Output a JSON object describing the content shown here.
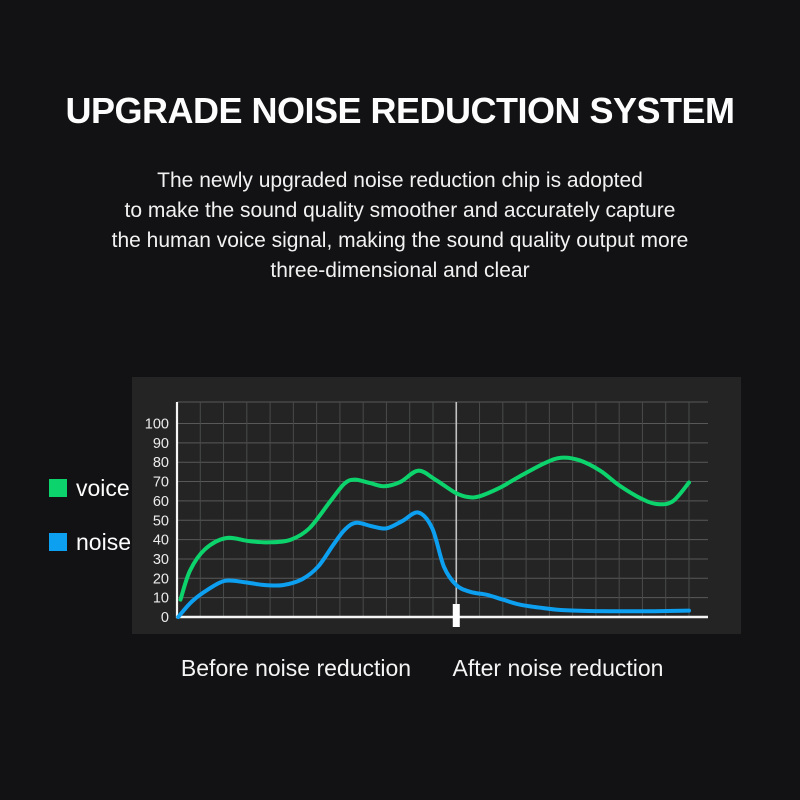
{
  "page": {
    "background": "#121214",
    "panel_background": "#242424"
  },
  "header": {
    "title": "UPGRADE NOISE REDUCTION SYSTEM",
    "description_lines": [
      "The newly upgraded noise reduction chip is adopted",
      "to make the sound quality smoother and accurately capture",
      "the human voice signal, making the sound quality output more",
      "three-dimensional and clear"
    ]
  },
  "legend": {
    "items": [
      {
        "label": "voice",
        "color": "#0cd36c"
      },
      {
        "label": "noise",
        "color": "#0d9ff0"
      }
    ]
  },
  "chart_data": {
    "type": "line",
    "title": "",
    "xlabel": "",
    "ylabel": "",
    "grid": true,
    "legend_position": "left-outside",
    "y_axis": {
      "ticks": [
        0,
        10,
        20,
        30,
        40,
        50,
        60,
        70,
        80,
        90,
        100
      ],
      "lim": [
        0,
        111
      ]
    },
    "x_axis": {
      "units": 22,
      "divider_unit": 12,
      "section_labels": [
        "Before noise reduction",
        "After noise reduction"
      ]
    },
    "colors": {
      "grid_h": "#585858",
      "grid_v": "#494a4a",
      "divider_line": "#c2c2c2",
      "axis": "#f5f5f5",
      "tick_label": "#ececec",
      "divider_tick": "#ffffff"
    },
    "series": [
      {
        "name": "voice",
        "color": "#0cd36c",
        "points": [
          [
            0.15,
            9
          ],
          [
            0.56,
            24
          ],
          [
            1.2,
            35
          ],
          [
            2.1,
            40.8
          ],
          [
            3.1,
            39.2
          ],
          [
            4.0,
            38.6
          ],
          [
            4.9,
            40
          ],
          [
            5.7,
            46
          ],
          [
            6.6,
            60
          ],
          [
            7.2,
            69
          ],
          [
            7.65,
            71
          ],
          [
            8.3,
            69.2
          ],
          [
            8.9,
            67.6
          ],
          [
            9.6,
            69.8
          ],
          [
            10.36,
            75.6
          ],
          [
            11.1,
            71
          ],
          [
            11.95,
            64.3
          ],
          [
            12.5,
            62
          ],
          [
            13.0,
            62.4
          ],
          [
            13.9,
            67
          ],
          [
            14.7,
            72.5
          ],
          [
            15.8,
            79.5
          ],
          [
            16.5,
            82.3
          ],
          [
            17.3,
            81
          ],
          [
            18.2,
            75.5
          ],
          [
            19.0,
            68
          ],
          [
            19.9,
            61.5
          ],
          [
            20.6,
            58.4
          ],
          [
            21.3,
            59.8
          ],
          [
            22,
            69.5
          ]
        ]
      },
      {
        "name": "noise",
        "color": "#0d9ff0",
        "points": [
          [
            0.05,
            0
          ],
          [
            0.64,
            8
          ],
          [
            1.3,
            14
          ],
          [
            2.06,
            18.7
          ],
          [
            2.9,
            18
          ],
          [
            3.7,
            16.6
          ],
          [
            4.55,
            16.5
          ],
          [
            5.37,
            19.5
          ],
          [
            6.06,
            26
          ],
          [
            6.7,
            37
          ],
          [
            7.2,
            45
          ],
          [
            7.7,
            48.7
          ],
          [
            8.4,
            46.8
          ],
          [
            9.0,
            45.8
          ],
          [
            9.67,
            49.5
          ],
          [
            10.36,
            54
          ],
          [
            10.96,
            46
          ],
          [
            11.47,
            26
          ],
          [
            12.0,
            16.5
          ],
          [
            12.6,
            13
          ],
          [
            13.3,
            11.5
          ],
          [
            14.0,
            9
          ],
          [
            14.7,
            6.5
          ],
          [
            15.6,
            4.8
          ],
          [
            16.5,
            3.6
          ],
          [
            17.7,
            3.1
          ],
          [
            19.0,
            3
          ],
          [
            20.5,
            3
          ],
          [
            22,
            3.3
          ]
        ]
      }
    ]
  }
}
